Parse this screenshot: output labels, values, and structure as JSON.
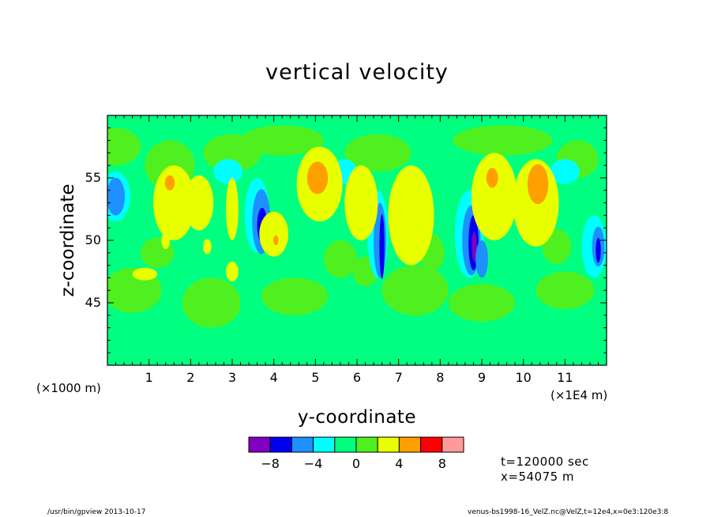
{
  "chart_data": {
    "type": "heatmap",
    "title": "vertical velocity",
    "xlabel": "y-coordinate",
    "ylabel": "z-coordinate",
    "x_scale_label": "(×1000 m)",
    "x_unit_label": "(×1E4 m)",
    "xlim": [
      0,
      12
    ],
    "ylim": [
      40,
      60
    ],
    "x_ticks": [
      "1",
      "2",
      "3",
      "4",
      "5",
      "6",
      "7",
      "8",
      "9",
      "10",
      "11"
    ],
    "y_ticks": [
      "45",
      "50",
      "55"
    ],
    "colorbar": {
      "colors": [
        "#8000c0",
        "#0000f0",
        "#1e90ff",
        "#00ffff",
        "#00ff80",
        "#50f020",
        "#e8ff00",
        "#ffa000",
        "#ff0000",
        "#ff9a9a"
      ],
      "tick_labels": [
        "−8",
        "−4",
        "0",
        "4",
        "8"
      ]
    }
  },
  "info": {
    "time": "t=120000 sec",
    "position": "x=54075 m"
  },
  "footer": {
    "left": "/usr/bin/gpview  2013-10-17",
    "right": "venus-bs1998-16_VelZ.nc@VelZ,t=12e4,x=0e3:120e3:8"
  }
}
